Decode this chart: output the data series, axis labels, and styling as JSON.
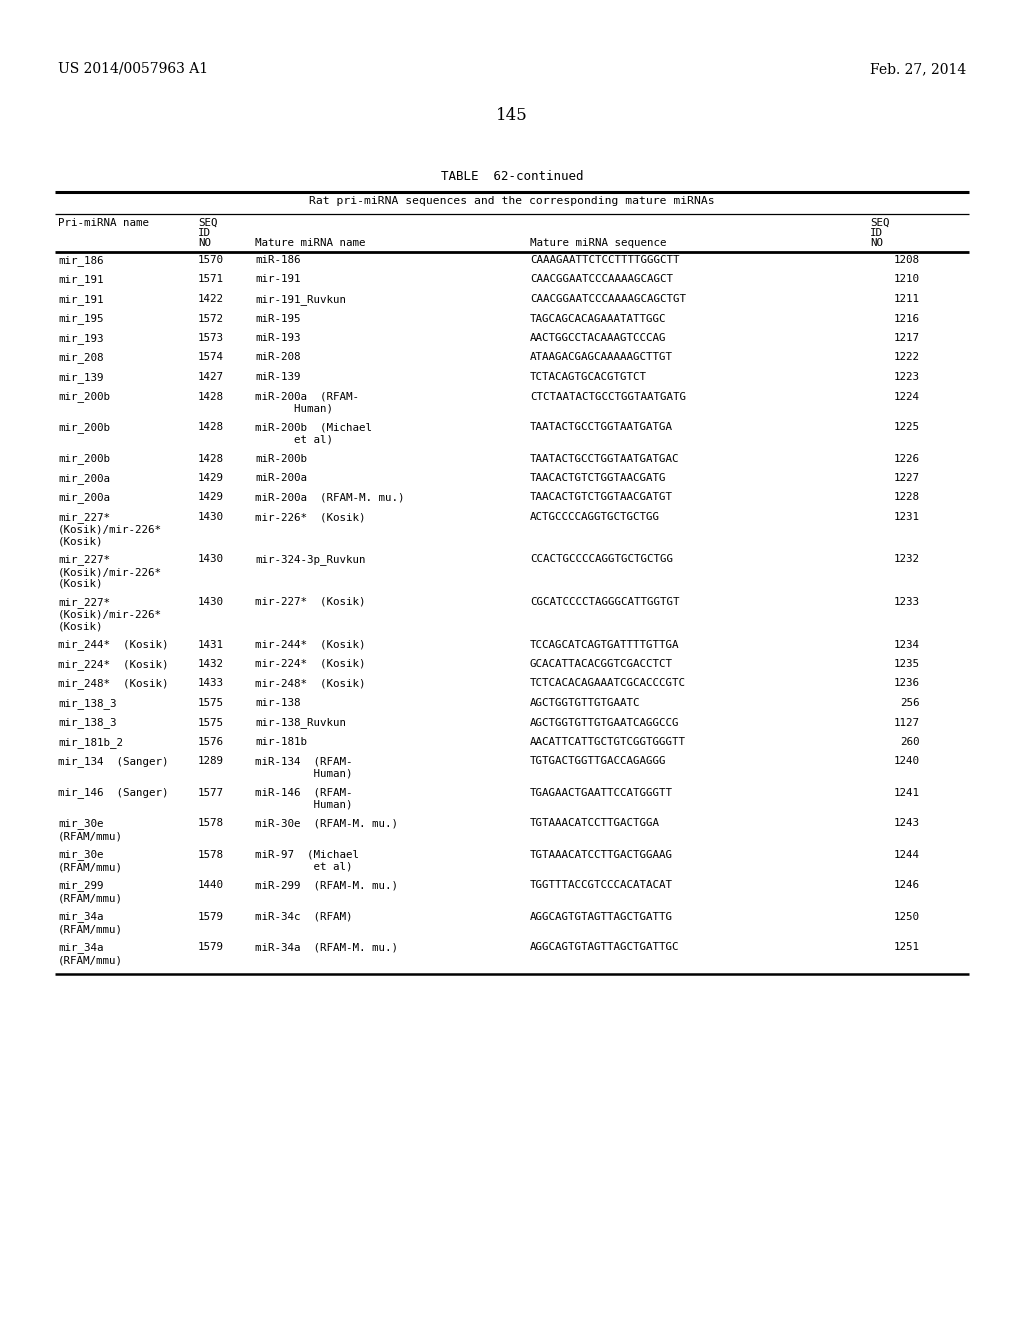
{
  "header_left": "US 2014/0057963 A1",
  "header_right": "Feb. 27, 2014",
  "page_number": "145",
  "table_title": "TABLE  62-continued",
  "table_subtitle": "Rat pri-miRNA sequences and the corresponding mature miRNAs",
  "rows": [
    [
      "mir_186",
      "1570",
      "miR-186",
      "CAAAGAATTCTCCTTTTGGGCTT",
      "1208"
    ],
    [
      "mir_191",
      "1571",
      "mir-191",
      "CAACGGAATCCCAAAAGCAGCT",
      "1210"
    ],
    [
      "mir_191",
      "1422",
      "mir-191_Ruvkun",
      "CAACGGAATCCCAAAAGCAGCTGT",
      "1211"
    ],
    [
      "mir_195",
      "1572",
      "miR-195",
      "TAGCAGCACAGAAATATTGGC",
      "1216"
    ],
    [
      "mir_193",
      "1573",
      "miR-193",
      "AACTGGCCTACAAAGTCCCAG",
      "1217"
    ],
    [
      "mir_208",
      "1574",
      "miR-208",
      "ATAAGACGAGCAAAAAGCTTGT",
      "1222"
    ],
    [
      "mir_139",
      "1427",
      "miR-139",
      "TCTACAGTGCACGTGTCT",
      "1223"
    ],
    [
      "mir_200b",
      "1428",
      "miR-200a  (RFAM-\n      Human)",
      "CTCTAATACTGCCTGGTAATGATG",
      "1224"
    ],
    [
      "mir_200b",
      "1428",
      "miR-200b  (Michael\n      et al)",
      "TAATACTGCCTGGTAATGATGA",
      "1225"
    ],
    [
      "mir_200b",
      "1428",
      "miR-200b",
      "TAATACTGCCTGGTAATGATGAC",
      "1226"
    ],
    [
      "mir_200a",
      "1429",
      "miR-200a",
      "TAACACTGTCTGGTAACGATG",
      "1227"
    ],
    [
      "mir_200a",
      "1429",
      "miR-200a  (RFAM-M. mu.)",
      "TAACACTGTCTGGTAACGATGT",
      "1228"
    ],
    [
      "mir_227*\n(Kosik)/mir-226*\n(Kosik)",
      "1430",
      "mir-226*  (Kosik)",
      "ACTGCCCCAGGTGCTGCTGG",
      "1231"
    ],
    [
      "mir_227*\n(Kosik)/mir-226*\n(Kosik)",
      "1430",
      "mir-324-3p_Ruvkun",
      "CCACTGCCCCAGGTGCTGCTGG",
      "1232"
    ],
    [
      "mir_227*\n(Kosik)/mir-226*\n(Kosik)",
      "1430",
      "mir-227*  (Kosik)",
      "CGCATCCCCTAGGGCATTGGTGT",
      "1233"
    ],
    [
      "mir_244*  (Kosik)",
      "1431",
      "mir-244*  (Kosik)",
      "TCCAGCATCAGTGATTTTGTTGA",
      "1234"
    ],
    [
      "mir_224*  (Kosik)",
      "1432",
      "mir-224*  (Kosik)",
      "GCACATTACACGGTCGACCTCT",
      "1235"
    ],
    [
      "mir_248*  (Kosik)",
      "1433",
      "mir-248*  (Kosik)",
      "TCTCACACAGAAATCGCACCCGTC",
      "1236"
    ],
    [
      "mir_138_3",
      "1575",
      "mir-138",
      "AGCTGGTGTTGTGAATC",
      "256"
    ],
    [
      "mir_138_3",
      "1575",
      "mir-138_Ruvkun",
      "AGCTGGTGTTGTGAATCAGGCCG",
      "1127"
    ],
    [
      "mir_181b_2",
      "1576",
      "mir-181b",
      "AACATTCATTGCTGTCGGTGGGTT",
      "260"
    ],
    [
      "mir_134  (Sanger)",
      "1289",
      "miR-134  (RFAM-\n         Human)",
      "TGTGACTGGTTGACCAGAGGG",
      "1240"
    ],
    [
      "mir_146  (Sanger)",
      "1577",
      "miR-146  (RFAM-\n         Human)",
      "TGAGAACTGAATTCCATGGGTT",
      "1241"
    ],
    [
      "mir_30e\n(RFAM/mmu)",
      "1578",
      "miR-30e  (RFAM-M. mu.)",
      "TGTAAACATCCTTGACTGGA",
      "1243"
    ],
    [
      "mir_30e\n(RFAM/mmu)",
      "1578",
      "miR-97  (Michael\n         et al)",
      "TGTAAACATCCTTGACTGGAAG",
      "1244"
    ],
    [
      "mir_299\n(RFAM/mmu)",
      "1440",
      "miR-299  (RFAM-M. mu.)",
      "TGGTTTACCGTCCCACATACAT",
      "1246"
    ],
    [
      "mir_34a\n(RFAM/mmu)",
      "1579",
      "miR-34c  (RFAM)",
      "AGGCAGTGTAGTTAGCTGATTG",
      "1250"
    ],
    [
      "mir_34a\n(RFAM/mmu)",
      "1579",
      "miR-34a  (RFAM-M. mu.)",
      "AGGCAGTGTAGTTAGCTGATTGC",
      "1251"
    ]
  ]
}
